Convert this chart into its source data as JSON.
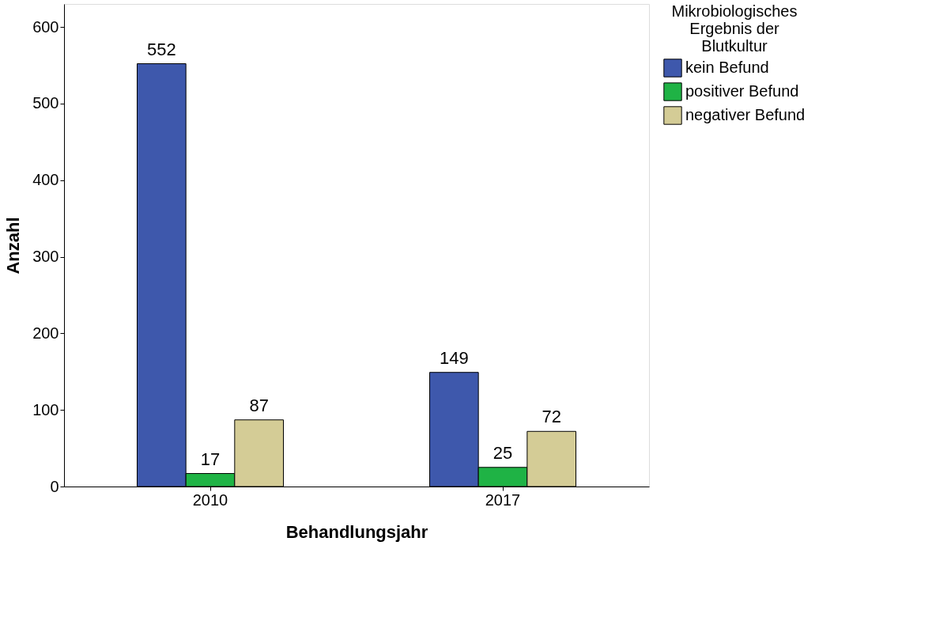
{
  "chart_data": {
    "type": "bar",
    "xlabel": "Behandlungsjahr",
    "ylabel": "Anzahl",
    "legend_title": "Mikrobiologisches Ergebnis der Blutkultur",
    "categories": [
      "2010",
      "2017"
    ],
    "series": [
      {
        "name": "kein Befund",
        "color": "#3e58ac",
        "values": [
          552,
          149
        ]
      },
      {
        "name": "positiver Befund",
        "color": "#1fb345",
        "values": [
          17,
          25
        ]
      },
      {
        "name": "negativer Befund",
        "color": "#d4cc96",
        "values": [
          87,
          72
        ]
      }
    ],
    "ylim": [
      0,
      630
    ],
    "yticks": [
      0,
      100,
      200,
      300,
      400,
      500,
      600
    ],
    "data_labels": true,
    "legend": "top right",
    "grid": false
  }
}
